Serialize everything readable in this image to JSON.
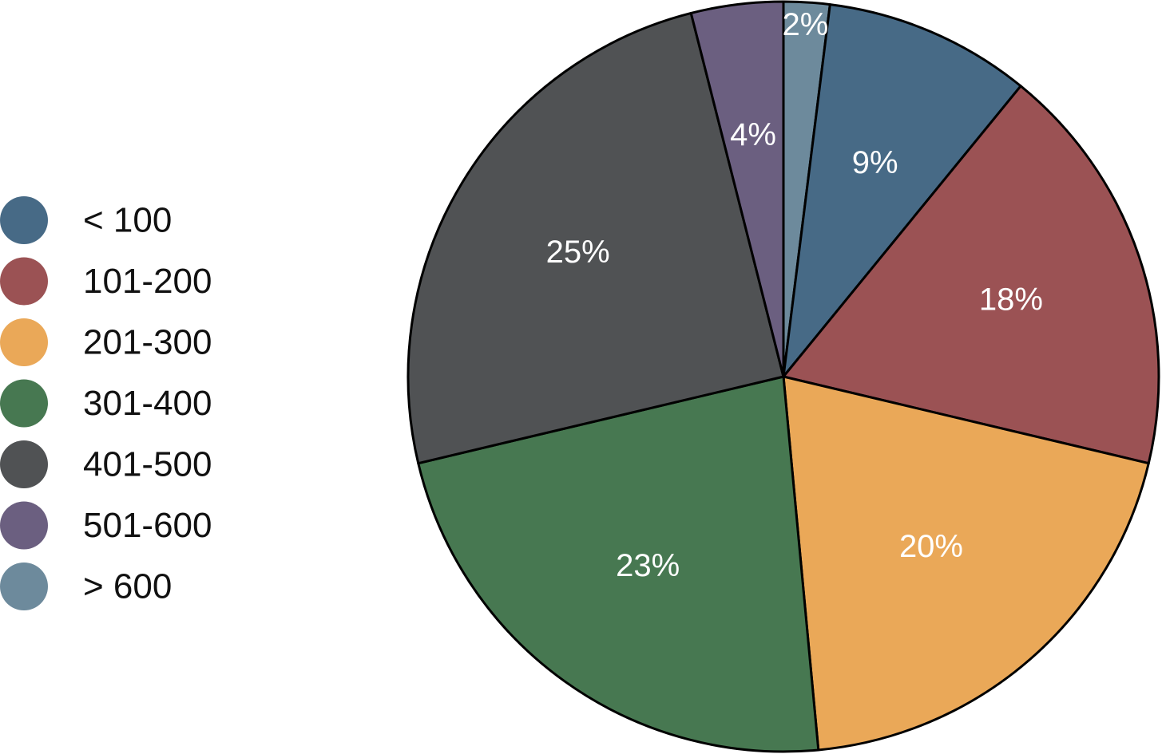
{
  "chart_data": {
    "type": "pie",
    "title": "",
    "start_angle": "12 o'clock",
    "direction": "clockwise",
    "legend_position": "left",
    "slices": [
      {
        "label": "< 100",
        "value": 9,
        "text": "9%",
        "color": "#476a86"
      },
      {
        "label": "101-200",
        "value": 18,
        "text": "18%",
        "color": "#9b5254"
      },
      {
        "label": "201-300",
        "value": 20,
        "text": "20%",
        "color": "#eaa858"
      },
      {
        "label": "301-400",
        "value": 23,
        "text": "23%",
        "color": "#477851"
      },
      {
        "label": "401-500",
        "value": 25,
        "text": "25%",
        "color": "#505254"
      },
      {
        "label": "501-600",
        "value": 4,
        "text": "4%",
        "color": "#6b5f80"
      },
      {
        "label": "> 600",
        "value": 2,
        "text": "2%",
        "color": "#6d8a9c"
      }
    ],
    "draw_order": [
      "> 600",
      "< 100",
      "101-200",
      "201-300",
      "301-400",
      "401-500",
      "501-600"
    ]
  }
}
